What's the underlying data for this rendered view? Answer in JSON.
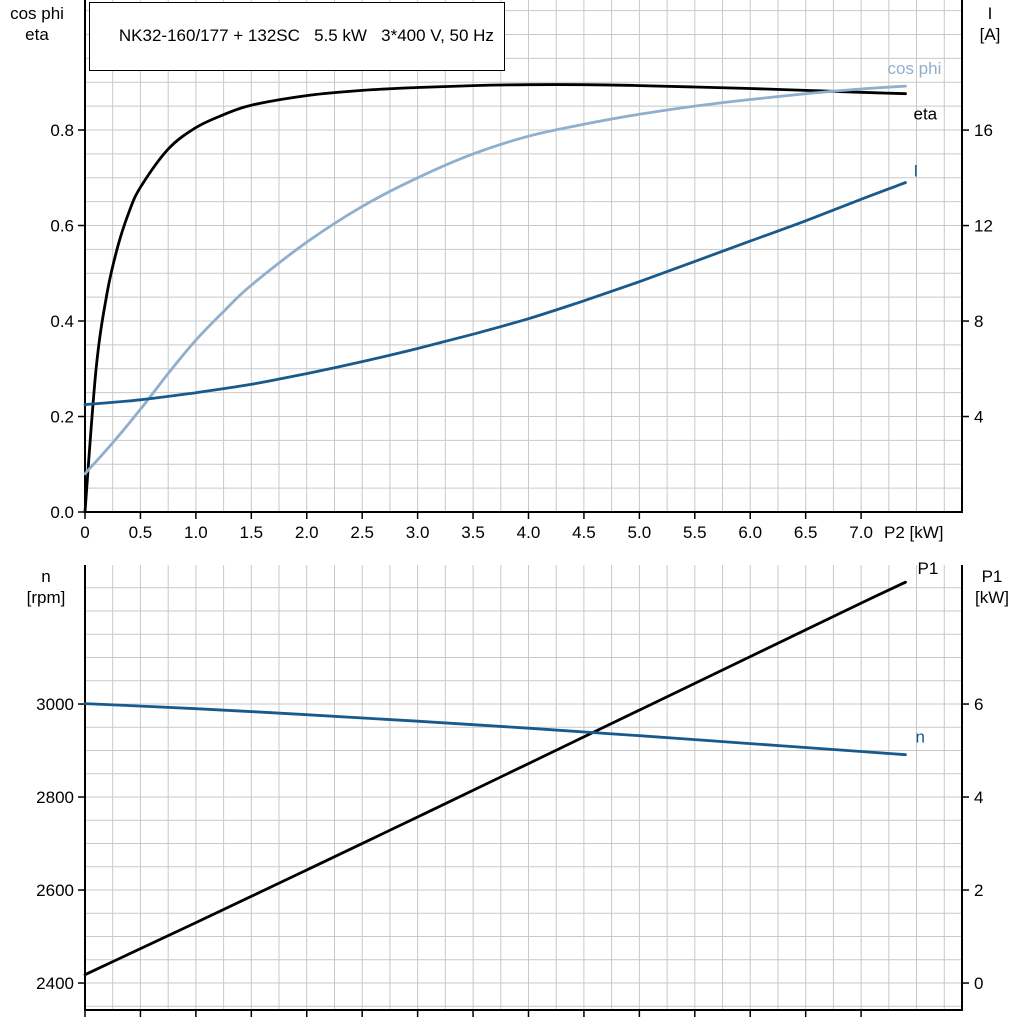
{
  "chart_data": [
    {
      "type": "line",
      "title": "NK32-160/177 + 132SC   5.5 kW   3*400 V, 50 Hz",
      "x_axis": {
        "label": "P2 [kW]",
        "lim": [
          0,
          7.91
        ],
        "grid_step": 0.25,
        "ticks": [
          0,
          0.5,
          1.0,
          1.5,
          2.0,
          2.5,
          3.0,
          3.5,
          4.0,
          4.5,
          5.0,
          5.5,
          6.0,
          6.5,
          7.0
        ],
        "tick_labels": [
          "0",
          "0.5",
          "1.0",
          "1.5",
          "2.0",
          "2.5",
          "3.0",
          "3.5",
          "4.0",
          "4.5",
          "5.0",
          "5.5",
          "6.0",
          "6.5",
          "7.0"
        ]
      },
      "left_axis": {
        "label_lines": [
          "cos phi",
          "eta"
        ],
        "lim": [
          0,
          1.0723
        ],
        "grid_step": 0.05,
        "ticks": [
          0.0,
          0.2,
          0.4,
          0.6,
          0.8
        ],
        "tick_labels": [
          "0.0",
          "0.2",
          "0.4",
          "0.6",
          "0.8"
        ]
      },
      "right_axis": {
        "label_lines": [
          "I",
          "[A]"
        ],
        "lim": [
          0,
          21.45
        ],
        "ticks": [
          4,
          8,
          12,
          16
        ],
        "tick_labels": [
          "4",
          "8",
          "12",
          "16"
        ]
      },
      "series": [
        {
          "name": "eta",
          "axis": "left",
          "color": "#000000",
          "points": [
            [
              0,
              0
            ],
            [
              0.1,
              0.3
            ],
            [
              0.2,
              0.46
            ],
            [
              0.3,
              0.56
            ],
            [
              0.4,
              0.63
            ],
            [
              0.5,
              0.68
            ],
            [
              0.75,
              0.76
            ],
            [
              1.0,
              0.805
            ],
            [
              1.25,
              0.832
            ],
            [
              1.5,
              0.852
            ],
            [
              2.0,
              0.872
            ],
            [
              2.5,
              0.883
            ],
            [
              3.0,
              0.889
            ],
            [
              3.5,
              0.893
            ],
            [
              4.0,
              0.895
            ],
            [
              4.5,
              0.895
            ],
            [
              5.0,
              0.893
            ],
            [
              5.5,
              0.89
            ],
            [
              6.0,
              0.887
            ],
            [
              6.5,
              0.883
            ],
            [
              7.0,
              0.879
            ],
            [
              7.4,
              0.876
            ]
          ]
        },
        {
          "name": "cos phi",
          "axis": "left",
          "color": "#8FAFCE",
          "points": [
            [
              0,
              0.08
            ],
            [
              0.25,
              0.145
            ],
            [
              0.5,
              0.215
            ],
            [
              0.75,
              0.29
            ],
            [
              1.0,
              0.36
            ],
            [
              1.25,
              0.42
            ],
            [
              1.5,
              0.475
            ],
            [
              2.0,
              0.565
            ],
            [
              2.5,
              0.64
            ],
            [
              3.0,
              0.7
            ],
            [
              3.5,
              0.75
            ],
            [
              4.0,
              0.787
            ],
            [
              4.5,
              0.812
            ],
            [
              5.0,
              0.833
            ],
            [
              5.5,
              0.85
            ],
            [
              6.0,
              0.864
            ],
            [
              6.5,
              0.876
            ],
            [
              7.0,
              0.886
            ],
            [
              7.4,
              0.892
            ]
          ]
        },
        {
          "name": "I",
          "axis": "right",
          "color": "#185A8C",
          "points": [
            [
              0,
              4.5
            ],
            [
              0.5,
              4.7
            ],
            [
              1.0,
              5.0
            ],
            [
              1.5,
              5.35
            ],
            [
              2.0,
              5.8
            ],
            [
              2.5,
              6.3
            ],
            [
              3.0,
              6.85
            ],
            [
              3.5,
              7.45
            ],
            [
              4.0,
              8.1
            ],
            [
              4.5,
              8.85
            ],
            [
              5.0,
              9.65
            ],
            [
              5.5,
              10.5
            ],
            [
              6.0,
              11.35
            ],
            [
              6.5,
              12.2
            ],
            [
              7.0,
              13.1
            ],
            [
              7.4,
              13.8
            ]
          ]
        }
      ]
    },
    {
      "type": "line",
      "title": "",
      "x_axis": {
        "label": "",
        "lim": [
          0,
          7.91
        ],
        "grid_step": 0.25,
        "ticks": [
          0,
          0.5,
          1.0,
          1.5,
          2.0,
          2.5,
          3.0,
          3.5,
          4.0,
          4.5,
          5.0,
          5.5,
          6.0,
          6.5,
          7.0
        ],
        "tick_labels": []
      },
      "left_axis": {
        "label_lines": [
          "n",
          "[rpm]"
        ],
        "lim": [
          2342,
          3299
        ],
        "grid_step": 50,
        "ticks": [
          2400,
          2600,
          2800,
          3000
        ],
        "tick_labels": [
          "2400",
          "2600",
          "2800",
          "3000"
        ]
      },
      "right_axis": {
        "label_lines": [
          "P1",
          "[kW]"
        ],
        "lim": [
          -0.58,
          8.99
        ],
        "ticks": [
          0,
          2,
          4,
          6
        ],
        "tick_labels": [
          "0",
          "2",
          "4",
          "6"
        ]
      },
      "series": [
        {
          "name": "P1",
          "axis": "right",
          "color": "#000000",
          "points": [
            [
              0,
              0.18
            ],
            [
              1,
              1.3
            ],
            [
              2,
              2.43
            ],
            [
              3,
              3.57
            ],
            [
              4,
              4.72
            ],
            [
              5,
              5.87
            ],
            [
              6,
              7.02
            ],
            [
              7,
              8.17
            ],
            [
              7.4,
              8.62
            ]
          ]
        },
        {
          "name": "n",
          "axis": "left",
          "color": "#185A8C",
          "points": [
            [
              0,
              3001
            ],
            [
              1,
              2990
            ],
            [
              2,
              2977
            ],
            [
              3,
              2963
            ],
            [
              4,
              2948
            ],
            [
              5,
              2932
            ],
            [
              6,
              2915
            ],
            [
              7,
              2898
            ],
            [
              7.4,
              2891
            ]
          ]
        }
      ]
    }
  ]
}
